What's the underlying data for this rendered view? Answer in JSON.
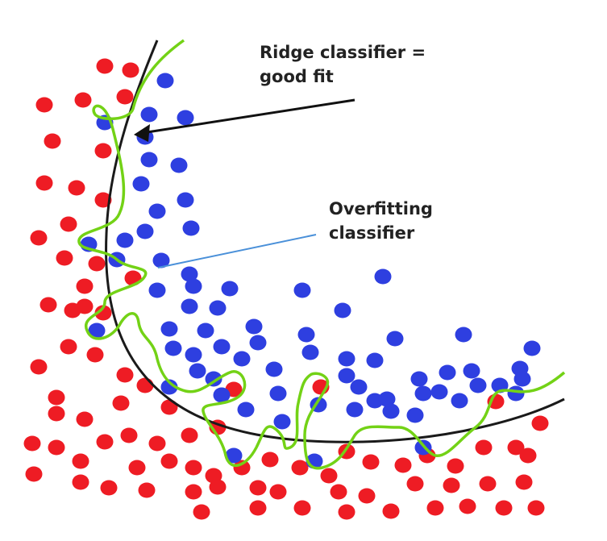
{
  "labels": {
    "ridge_line1": "Ridge classifier =",
    "ridge_line2": "good fit",
    "overfit_line1": "Overfitting",
    "overfit_line2": "classifier"
  },
  "colors": {
    "red_point": "#ee1c24",
    "blue_point": "#2e3fe0",
    "ridge_curve": "#1a1a1a",
    "overfit_curve": "#73d216",
    "ridge_arrow": "#111111",
    "overfit_pointer": "#4a90d9"
  },
  "chart_data": {
    "type": "scatter",
    "classes": [
      "red",
      "blue"
    ],
    "boundaries": [
      "Ridge classifier = good fit",
      "Overfitting classifier"
    ]
  }
}
